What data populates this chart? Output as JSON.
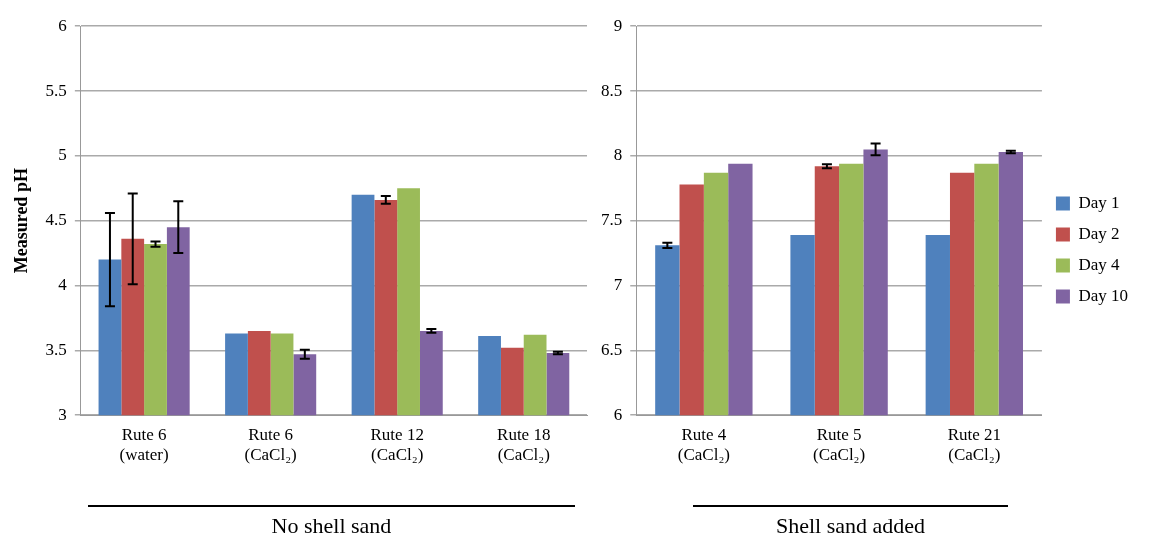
{
  "chart_data": [
    {
      "type": "bar",
      "ylabel": "Measured pH",
      "categories": [
        "Rute 6\n(water)",
        "Rute 6\n(CaCl₂)",
        "Rute 12\n(CaCl₂)",
        "Rute 18\n(CaCl₂)"
      ],
      "ylim": [
        3,
        6
      ],
      "yticks": [
        3,
        3.5,
        4,
        4.5,
        5,
        5.5,
        6
      ],
      "grid": "y",
      "legend": false,
      "annotations": [
        "No shell sand"
      ],
      "series": [
        {
          "color": "#4f81bd",
          "values": [
            4.2,
            3.63,
            4.7,
            3.61
          ],
          "errors": [
            0.36,
            null,
            null,
            null
          ]
        },
        {
          "color": "#c0504d",
          "values": [
            4.36,
            3.65,
            4.66,
            3.52
          ],
          "errors": [
            0.35,
            null,
            0.03,
            null
          ]
        },
        {
          "color": "#9bbb59",
          "values": [
            4.32,
            3.63,
            4.75,
            3.62
          ],
          "errors": [
            0.02,
            null,
            null,
            null
          ]
        },
        {
          "color": "#8064a2",
          "values": [
            4.45,
            3.47,
            3.65,
            3.48
          ],
          "errors": [
            0.2,
            0.035,
            0.015,
            0.01
          ]
        }
      ]
    },
    {
      "type": "bar",
      "categories": [
        "Rute 4\n(CaCl₂)",
        "Rute 5\n(CaCl₂)",
        "Rute 21\n(CaCl₂)"
      ],
      "ylim": [
        6,
        9
      ],
      "yticks": [
        6,
        6.5,
        7,
        7.5,
        8,
        8.5,
        9
      ],
      "grid": "y",
      "legend": "right",
      "annotations": [
        "Shell sand added"
      ],
      "series": [
        {
          "name": "Day 1",
          "color": "#4f81bd",
          "values": [
            7.31,
            7.39,
            7.39
          ],
          "errors": [
            0.02,
            null,
            null
          ]
        },
        {
          "name": "Day 2",
          "color": "#c0504d",
          "values": [
            7.78,
            7.92,
            7.87
          ],
          "errors": [
            null,
            0.015,
            null
          ]
        },
        {
          "name": "Day 4",
          "color": "#9bbb59",
          "values": [
            7.87,
            7.94,
            7.94
          ],
          "errors": [
            null,
            null,
            null
          ]
        },
        {
          "name": "Day 10",
          "color": "#8064a2",
          "values": [
            7.94,
            8.05,
            8.03
          ],
          "errors": [
            null,
            0.045,
            0.01
          ]
        }
      ]
    }
  ]
}
